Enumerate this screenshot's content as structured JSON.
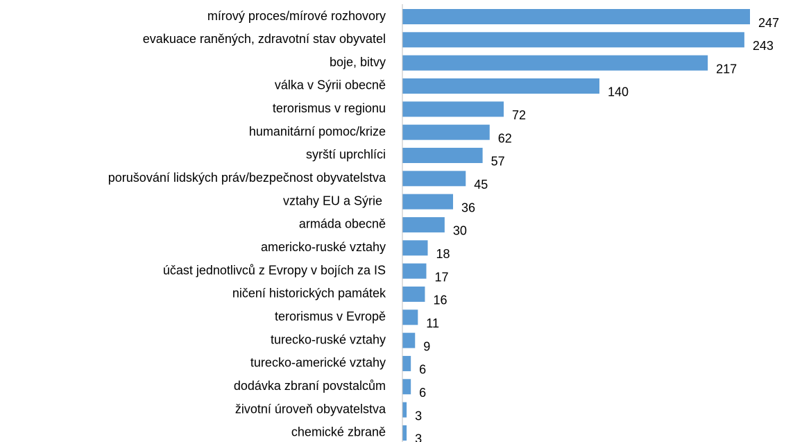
{
  "chart_data": {
    "type": "bar",
    "orientation": "horizontal",
    "color": "#5b9bd5",
    "categories": [
      "mírový proces/mírové rozhovory",
      "evakuace raněných, zdravotní stav obyvatel",
      "boje, bitvy",
      "válka v Sýrii obecně",
      "terorismus v regionu",
      "humanitární pomoc/krize",
      "syrští uprchlíci",
      "porušování lidských práv/bezpečnost obyvatelstva",
      "vztahy EU a Sýrie ",
      "armáda obecně",
      "americko-ruské vztahy",
      "účast jednotlivců z Evropy v bojích za IS",
      "ničení historických památek",
      "terorismus v Evropě",
      "turecko-ruské vztahy",
      "turecko-americké vztahy",
      "dodávka zbraní povstalcům",
      "životní úroveň obyvatelstva",
      "chemické zbraně"
    ],
    "values": [
      247,
      243,
      217,
      140,
      72,
      62,
      57,
      45,
      36,
      30,
      18,
      17,
      16,
      11,
      9,
      6,
      6,
      3,
      3
    ]
  }
}
